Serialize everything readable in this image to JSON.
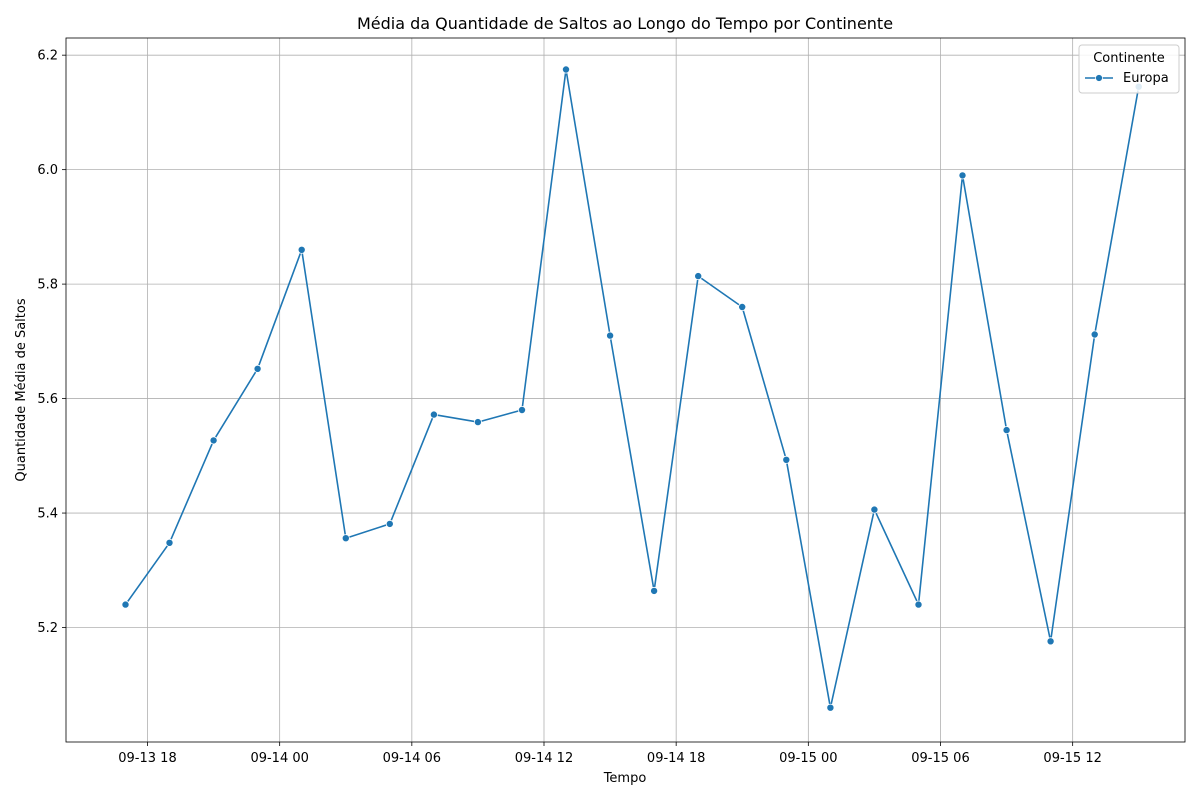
{
  "chart_data": {
    "type": "line",
    "title": "Média da Quantidade de Saltos ao Longo do Tempo por Continente",
    "xlabel": "Tempo",
    "ylabel": "Quantidade Média de Saltos",
    "x_ticks": [
      {
        "label": "09-13 18",
        "value": "2023-09-13 18:00"
      },
      {
        "label": "09-14 00",
        "value": "2023-09-14 00:00"
      },
      {
        "label": "09-14 06",
        "value": "2023-09-14 06:00"
      },
      {
        "label": "09-14 12",
        "value": "2023-09-14 12:00"
      },
      {
        "label": "09-14 18",
        "value": "2023-09-14 18:00"
      },
      {
        "label": "09-15 00",
        "value": "2023-09-15 00:00"
      },
      {
        "label": "09-15 06",
        "value": "2023-09-15 06:00"
      },
      {
        "label": "09-15 12",
        "value": "2023-09-15 12:00"
      }
    ],
    "y_ticks": [
      5.2,
      5.4,
      5.6,
      5.8,
      6.0,
      6.2
    ],
    "y_tick_labels": [
      "5.2",
      "5.4",
      "5.6",
      "5.8",
      "6.0",
      "6.2"
    ],
    "xlim": [
      "2023-09-13 14:18",
      "2023-09-15 17:06"
    ],
    "ylim": [
      5.0,
      6.23
    ],
    "grid": true,
    "legend": {
      "title": "Continente",
      "placement": "top-right"
    },
    "x": [
      "2023-09-13 17:00",
      "2023-09-13 19:00",
      "2023-09-13 21:00",
      "2023-09-13 23:00",
      "2023-09-14 01:00",
      "2023-09-14 03:00",
      "2023-09-14 05:00",
      "2023-09-14 07:00",
      "2023-09-14 09:00",
      "2023-09-14 11:00",
      "2023-09-14 13:00",
      "2023-09-14 15:00",
      "2023-09-14 17:00",
      "2023-09-14 19:00",
      "2023-09-14 21:00",
      "2023-09-14 23:00",
      "2023-09-15 01:00",
      "2023-09-15 03:00",
      "2023-09-15 05:00",
      "2023-09-15 07:00",
      "2023-09-15 09:00",
      "2023-09-15 11:00",
      "2023-09-15 13:00",
      "2023-09-15 15:00"
    ],
    "series": [
      {
        "name": "Europa",
        "color": "#1f77b4",
        "values": [
          5.24,
          5.348,
          5.527,
          5.652,
          5.86,
          5.356,
          5.381,
          5.572,
          5.559,
          5.58,
          6.175,
          5.71,
          5.264,
          5.814,
          5.76,
          5.493,
          5.06,
          5.406,
          5.24,
          5.99,
          5.545,
          5.176,
          5.712,
          6.145
        ]
      }
    ]
  }
}
